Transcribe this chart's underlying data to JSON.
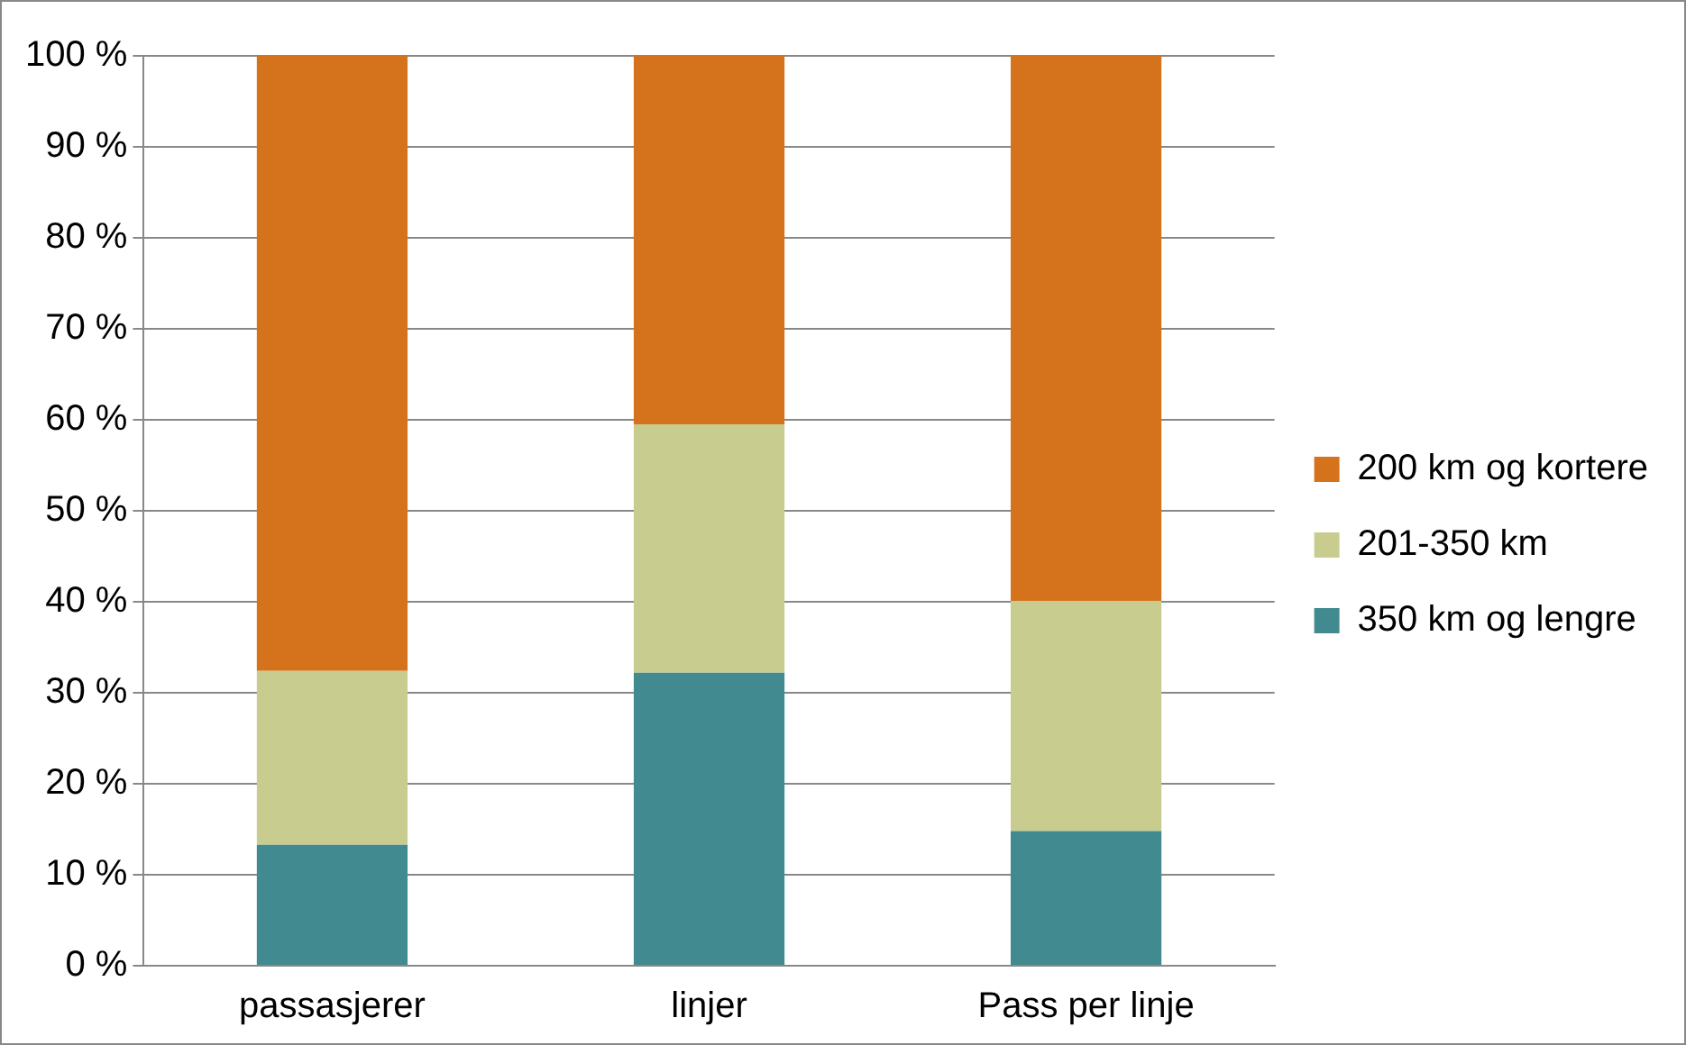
{
  "chart_data": {
    "type": "bar",
    "stacked": true,
    "categories": [
      "passasjerer",
      "linjer",
      "Pass per linje"
    ],
    "series": [
      {
        "name": "350 km og lengre",
        "color": "#418a8f",
        "values": [
          13.3,
          32.2,
          14.8
        ]
      },
      {
        "name": "201-350 km",
        "color": "#c8cd8f",
        "values": [
          19.1,
          27.3,
          25.3
        ]
      },
      {
        "name": "200 km og kortere",
        "color": "#d4731c",
        "values": [
          67.6,
          40.5,
          59.9
        ]
      }
    ],
    "ylim": [
      0,
      100
    ],
    "yticks": [
      {
        "value": 0,
        "label": "0 %"
      },
      {
        "value": 10,
        "label": "10 %"
      },
      {
        "value": 20,
        "label": "20 %"
      },
      {
        "value": 30,
        "label": "30 %"
      },
      {
        "value": 40,
        "label": "40 %"
      },
      {
        "value": 50,
        "label": "50 %"
      },
      {
        "value": 60,
        "label": "60 %"
      },
      {
        "value": 70,
        "label": "70 %"
      },
      {
        "value": 80,
        "label": "80 %"
      },
      {
        "value": 90,
        "label": "90 %"
      },
      {
        "value": 100,
        "label": "100 %"
      }
    ],
    "grid": "y",
    "legend": "right"
  }
}
